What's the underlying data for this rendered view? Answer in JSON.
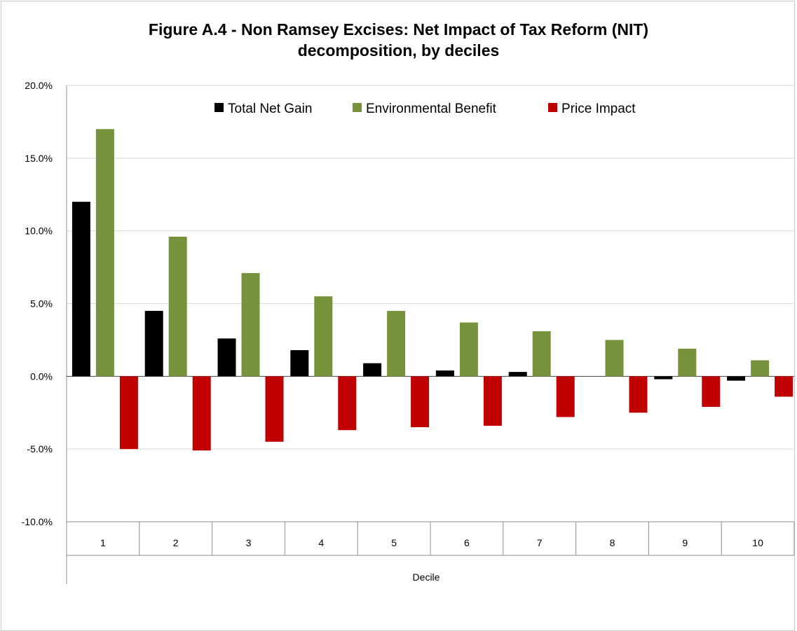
{
  "chart_data": {
    "type": "bar",
    "title_lines": [
      "Figure A.4 - Non Ramsey Excises: Net Impact of Tax Reform (NIT)",
      "decomposition, by deciles"
    ],
    "xlabel": "Decile",
    "ylabel": "",
    "categories": [
      "1",
      "2",
      "3",
      "4",
      "5",
      "6",
      "7",
      "8",
      "9",
      "10"
    ],
    "ylim": [
      -0.1,
      0.2
    ],
    "y_ticks": [
      -0.1,
      -0.05,
      0.0,
      0.05,
      0.1,
      0.15,
      0.2
    ],
    "y_tick_labels": [
      "-10.0%",
      "-5.0%",
      "0.0%",
      "5.0%",
      "10.0%",
      "15.0%",
      "20.0%"
    ],
    "grid": true,
    "legend_position": "top",
    "series": [
      {
        "name": "Total Net Gain",
        "color": "#000000",
        "values": [
          0.12,
          0.045,
          0.026,
          0.018,
          0.009,
          0.004,
          0.003,
          0.0,
          -0.002,
          -0.003
        ]
      },
      {
        "name": "Environmental Benefit",
        "color": "#76933c",
        "values": [
          0.17,
          0.096,
          0.071,
          0.055,
          0.045,
          0.037,
          0.031,
          0.025,
          0.019,
          0.011
        ]
      },
      {
        "name": "Price Impact",
        "color": "#c00000",
        "values": [
          -0.05,
          -0.051,
          -0.045,
          -0.037,
          -0.035,
          -0.034,
          -0.028,
          -0.025,
          -0.021,
          -0.014
        ]
      }
    ]
  }
}
